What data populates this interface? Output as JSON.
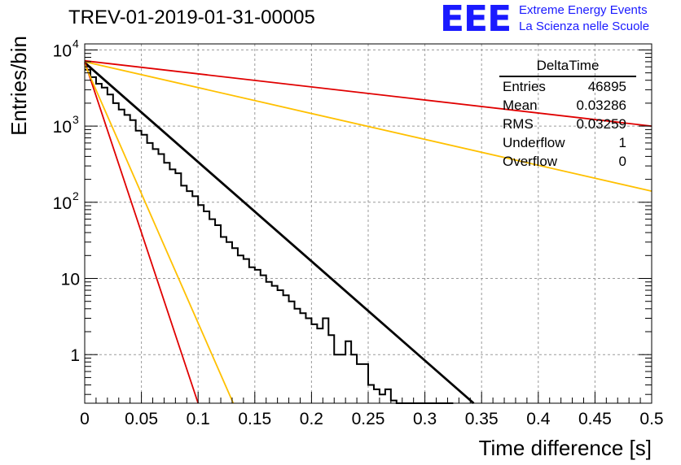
{
  "title": "TREV-01-2019-01-31-00005",
  "logo": {
    "mark": "EEE",
    "line1": "Extreme Energy Events",
    "line2": "La Scienza nelle Scuole"
  },
  "stats": {
    "name": "DeltaTime",
    "rows": [
      {
        "label": "Entries",
        "value": "46895"
      },
      {
        "label": "Mean",
        "value": "0.03286"
      },
      {
        "label": "RMS",
        "value": "0.03259"
      },
      {
        "label": "Underflow",
        "value": "1"
      },
      {
        "label": "Overflow",
        "value": "0"
      }
    ]
  },
  "colors": {
    "histogram": "#000000",
    "fit": "#000000",
    "red": "#e00000",
    "orange": "#ffc000",
    "grid": "#9a9a9a"
  },
  "chart_data": {
    "type": "line",
    "xlabel": "Time difference [s]",
    "ylabel": "Entries/bin",
    "xlim": [
      0,
      0.5
    ],
    "ylim": [
      0.23,
      12000
    ],
    "yscale": "log",
    "grid": true,
    "x_ticks": [
      "0",
      "0.05",
      "0.1",
      "0.15",
      "0.2",
      "0.25",
      "0.3",
      "0.35",
      "0.4",
      "0.45",
      "0.5"
    ],
    "y_ticks": [
      {
        "value": 1,
        "label": "1"
      },
      {
        "value": 10,
        "label": "10"
      },
      {
        "value": 100,
        "label": "10",
        "exp": "2"
      },
      {
        "value": 1000,
        "label": "10",
        "exp": "3"
      },
      {
        "value": 10000,
        "label": "10",
        "exp": "4"
      }
    ],
    "histogram": {
      "bin_width": 0.005,
      "x_start": 0,
      "values": [
        5500,
        4400,
        3600,
        3200,
        2600,
        2000,
        1650,
        1400,
        1200,
        870,
        770,
        600,
        500,
        430,
        330,
        270,
        240,
        165,
        140,
        120,
        92,
        76,
        60,
        50,
        35,
        30,
        25,
        20,
        18,
        14,
        13,
        11,
        9,
        8,
        7,
        6,
        5,
        4,
        3.5,
        3,
        2.5,
        2.2,
        3,
        1.8,
        1,
        1,
        1.5,
        1,
        0.75,
        0.75,
        0.4,
        0.35,
        0.3,
        0.35,
        0.25,
        0.2,
        0.2,
        0.15,
        0.15,
        0.12,
        0.1,
        0.08,
        0.07,
        0.06,
        0.05
      ]
    },
    "series": [
      {
        "color": "#000000",
        "x": [
          0,
          0.343
        ],
        "y": [
          6800,
          0.23
        ],
        "width": 2.8
      },
      {
        "color": "#e00000",
        "x": [
          0,
          0.1
        ],
        "y": [
          7000,
          0.23
        ],
        "width": 1.8
      },
      {
        "color": "#e00000",
        "x": [
          0,
          0.5
        ],
        "y": [
          7200,
          1000
        ],
        "width": 1.8
      },
      {
        "color": "#ffc000",
        "x": [
          0,
          0.131
        ],
        "y": [
          6500,
          0.23
        ],
        "width": 1.8
      },
      {
        "color": "#ffc000",
        "x": [
          0,
          0.5
        ],
        "y": [
          7000,
          140
        ],
        "width": 1.8
      }
    ]
  }
}
